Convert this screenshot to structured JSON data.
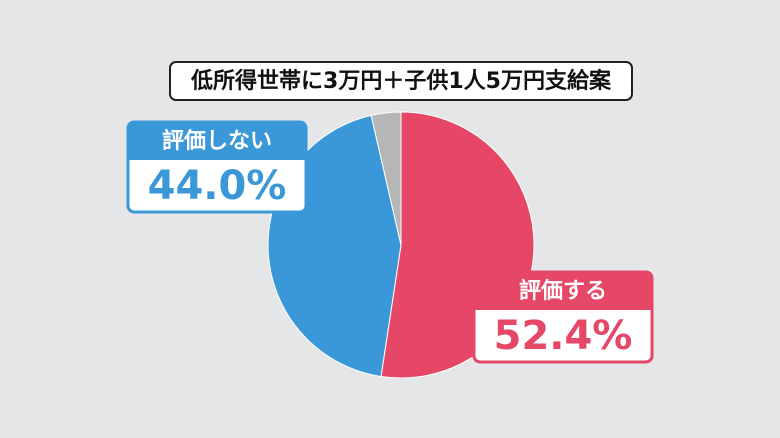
{
  "chart_data": {
    "type": "pie",
    "title": "低所得世帯に3万円＋子供1人5万円支給案",
    "categories": [
      "評価する",
      "評価しない",
      null
    ],
    "values": [
      52.4,
      44.0,
      3.6
    ],
    "value_labels": [
      "52.4%",
      "44.0%",
      null
    ],
    "colors": [
      "#e64767",
      "#3a98d8",
      "#b4b6b8"
    ]
  }
}
